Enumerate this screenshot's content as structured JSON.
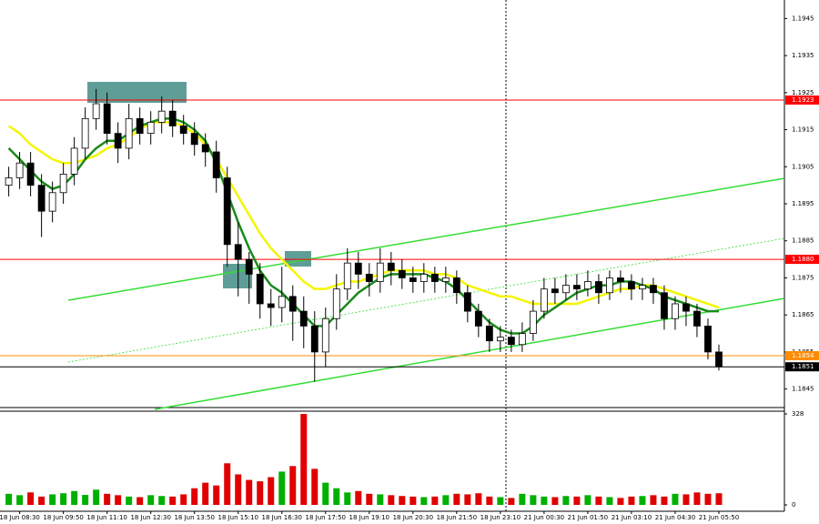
{
  "chart_data": [
    {
      "type": "candlestick",
      "x": [
        -1,
        0,
        1,
        2,
        3,
        4,
        5,
        6,
        7,
        8,
        9,
        10,
        11,
        12,
        13,
        14,
        15,
        16,
        17,
        18,
        19,
        20,
        21,
        22,
        23,
        24,
        25,
        26,
        27,
        28,
        29,
        30,
        31,
        32,
        33,
        34,
        35,
        36,
        37,
        38,
        39,
        40,
        41,
        42,
        43,
        44,
        45,
        46,
        47,
        48,
        49,
        50,
        51,
        52,
        53,
        54,
        55,
        56,
        57,
        58,
        59,
        60,
        61,
        62,
        63,
        64
      ],
      "open": [
        1.19,
        1.1902,
        1.1906,
        1.19,
        1.1893,
        1.1898,
        1.1903,
        1.191,
        1.1918,
        1.1922,
        1.1914,
        1.191,
        1.1918,
        1.1914,
        1.1917,
        1.192,
        1.1916,
        1.1914,
        1.1911,
        1.1909,
        1.1902,
        1.1884,
        1.188,
        1.1876,
        1.1868,
        1.1867,
        1.187,
        1.1866,
        1.1862,
        1.1855,
        1.1864,
        1.1872,
        1.1879,
        1.1876,
        1.1874,
        1.1879,
        1.1877,
        1.1875,
        1.1874,
        1.1876,
        1.1874,
        1.1875,
        1.1871,
        1.1866,
        1.1862,
        1.1858,
        1.1859,
        1.1857,
        1.186,
        1.1866,
        1.1872,
        1.1871,
        1.1873,
        1.1872,
        1.1874,
        1.1871,
        1.1875,
        1.1874,
        1.1872,
        1.1873,
        1.1871,
        1.1864,
        1.1868,
        1.1866,
        1.1862,
        1.1855
      ],
      "high": [
        1.1905,
        1.1909,
        1.1909,
        1.1903,
        1.1901,
        1.1906,
        1.1913,
        1.1921,
        1.1926,
        1.1925,
        1.1917,
        1.1922,
        1.1921,
        1.192,
        1.1924,
        1.1923,
        1.1919,
        1.1917,
        1.1914,
        1.1912,
        1.1905,
        1.189,
        1.1882,
        1.1879,
        1.1872,
        1.1878,
        1.1873,
        1.187,
        1.1866,
        1.1867,
        1.1876,
        1.1883,
        1.1882,
        1.1879,
        1.1883,
        1.1882,
        1.188,
        1.1878,
        1.1879,
        1.1878,
        1.1878,
        1.1877,
        1.1873,
        1.1868,
        1.1864,
        1.1862,
        1.1861,
        1.1863,
        1.1869,
        1.1875,
        1.1875,
        1.1876,
        1.1876,
        1.1877,
        1.1876,
        1.1877,
        1.1877,
        1.1876,
        1.1875,
        1.1875,
        1.1873,
        1.187,
        1.187,
        1.1868,
        1.1864,
        1.1857
      ],
      "low": [
        1.1897,
        1.1899,
        1.1897,
        1.1886,
        1.189,
        1.1895,
        1.19,
        1.1907,
        1.1915,
        1.1911,
        1.1906,
        1.1907,
        1.1911,
        1.1911,
        1.1914,
        1.1913,
        1.1911,
        1.1908,
        1.1905,
        1.1898,
        1.1878,
        1.187,
        1.1868,
        1.1864,
        1.1862,
        1.1863,
        1.1858,
        1.1856,
        1.1847,
        1.1851,
        1.1861,
        1.1869,
        1.1872,
        1.187,
        1.1871,
        1.1873,
        1.1872,
        1.1871,
        1.1871,
        1.1871,
        1.1871,
        1.1868,
        1.1863,
        1.1859,
        1.1855,
        1.1855,
        1.1855,
        1.1855,
        1.1858,
        1.1864,
        1.1868,
        1.1869,
        1.1869,
        1.187,
        1.1868,
        1.1869,
        1.1871,
        1.1869,
        1.1869,
        1.1868,
        1.1861,
        1.1861,
        1.1862,
        1.1859,
        1.1853,
        1.185
      ],
      "close": [
        1.1902,
        1.1906,
        1.19,
        1.1893,
        1.1898,
        1.1903,
        1.191,
        1.1918,
        1.1922,
        1.1914,
        1.191,
        1.1918,
        1.1914,
        1.1917,
        1.192,
        1.1916,
        1.1914,
        1.1911,
        1.1909,
        1.1902,
        1.1884,
        1.188,
        1.1876,
        1.1868,
        1.1867,
        1.187,
        1.1866,
        1.1862,
        1.1855,
        1.1864,
        1.1872,
        1.1879,
        1.1876,
        1.1874,
        1.1879,
        1.1877,
        1.1875,
        1.1874,
        1.1876,
        1.1874,
        1.1875,
        1.1871,
        1.1866,
        1.1862,
        1.1858,
        1.1859,
        1.1857,
        1.186,
        1.1866,
        1.1872,
        1.1871,
        1.1873,
        1.1872,
        1.1874,
        1.1871,
        1.1875,
        1.1874,
        1.1872,
        1.1873,
        1.1871,
        1.1864,
        1.1868,
        1.1866,
        1.1862,
        1.1855,
        1.1851
      ],
      "series": [
        {
          "color": "#f5f500",
          "values": [
            1.1916,
            1.1914,
            1.1911,
            1.1909,
            1.1907,
            1.1906,
            1.1906,
            1.1907,
            1.1908,
            1.191,
            1.1911,
            1.1913,
            1.1915,
            1.1917,
            1.1917,
            1.1917,
            1.1916,
            1.1914,
            1.1911,
            1.1907,
            1.1902,
            1.1897,
            1.1892,
            1.1887,
            1.1883,
            1.188,
            1.1877,
            1.1874,
            1.1872,
            1.1872,
            1.1873,
            1.1874,
            1.1874,
            1.1875,
            1.1876,
            1.1877,
            1.1877,
            1.1877,
            1.1877,
            1.1876,
            1.1876,
            1.1875,
            1.1873,
            1.1872,
            1.1871,
            1.187,
            1.187,
            1.1869,
            1.1868,
            1.1868,
            1.1868,
            1.1868,
            1.1868,
            1.1869,
            1.187,
            1.1871,
            1.1872,
            1.1872,
            1.1873,
            1.1873,
            1.1872,
            1.1871,
            1.187,
            1.1869,
            1.1868,
            1.1867
          ]
        },
        {
          "color": "#1a8a1a",
          "values": [
            1.191,
            1.1907,
            1.1904,
            1.1901,
            1.1899,
            1.19,
            1.1903,
            1.1907,
            1.191,
            1.1912,
            1.1912,
            1.1914,
            1.1916,
            1.1917,
            1.1918,
            1.1918,
            1.1917,
            1.1915,
            1.1912,
            1.1906,
            1.1898,
            1.189,
            1.1883,
            1.1877,
            1.1873,
            1.1871,
            1.1868,
            1.1865,
            1.1862,
            1.1862,
            1.1865,
            1.1868,
            1.1871,
            1.1873,
            1.1875,
            1.1876,
            1.1876,
            1.1876,
            1.1876,
            1.1875,
            1.1874,
            1.1872,
            1.1869,
            1.1866,
            1.1863,
            1.1861,
            1.186,
            1.186,
            1.1862,
            1.1865,
            1.1867,
            1.1869,
            1.1871,
            1.1872,
            1.1873,
            1.1873,
            1.1874,
            1.1874,
            1.1873,
            1.1872,
            1.187,
            1.1869,
            1.1868,
            1.1867,
            1.1866,
            1.1866
          ]
        }
      ],
      "xlim": [
        -1.8,
        70
      ],
      "ylim": [
        1.184,
        1.195
      ],
      "yticks": [
        1.1845,
        1.1855,
        1.1865,
        1.1875,
        1.1885,
        1.1895,
        1.1905,
        1.1915,
        1.1925,
        1.1935,
        1.1945
      ],
      "levels": [
        {
          "value": 1.1923,
          "color": "#ff0000"
        },
        {
          "value": 1.188,
          "label": "1.1880",
          "color": "#ff0000"
        },
        {
          "value": 1.1854,
          "color": "#ff8c00"
        },
        {
          "value": 1.1851,
          "color": "#000000"
        }
      ]
    },
    {
      "type": "bar",
      "x": [
        -1,
        0,
        1,
        2,
        3,
        4,
        5,
        6,
        7,
        8,
        9,
        10,
        11,
        12,
        13,
        14,
        15,
        16,
        17,
        18,
        19,
        20,
        21,
        22,
        23,
        24,
        25,
        26,
        27,
        28,
        29,
        30,
        31,
        32,
        33,
        34,
        35,
        36,
        37,
        38,
        39,
        40,
        41,
        42,
        43,
        44,
        45,
        46,
        47,
        48,
        49,
        50,
        51,
        52,
        53,
        54,
        55,
        56,
        57,
        58,
        59,
        60,
        61,
        62,
        63,
        64
      ],
      "values": [
        40,
        35,
        45,
        30,
        38,
        42,
        50,
        36,
        55,
        40,
        35,
        30,
        28,
        35,
        32,
        30,
        38,
        60,
        80,
        70,
        150,
        110,
        90,
        85,
        100,
        120,
        140,
        328,
        130,
        80,
        60,
        45,
        50,
        40,
        38,
        35,
        32,
        30,
        28,
        30,
        35,
        40,
        38,
        42,
        30,
        28,
        25,
        40,
        35,
        30,
        28,
        32,
        30,
        35,
        30,
        28,
        25,
        30,
        32,
        35,
        30,
        40,
        38,
        45,
        40,
        42
      ],
      "up_color": "#00b000",
      "down_color": "#e00000",
      "xlim": [
        -1.8,
        70
      ],
      "ylim": [
        0,
        328
      ],
      "yticks": [
        0,
        328
      ],
      "xticks": [
        {
          "value": 0,
          "label": "18 Jun 08:30"
        },
        {
          "value": 4,
          "label": "18 Jun 09:50"
        },
        {
          "value": 8,
          "label": "18 Jun 11:10"
        },
        {
          "value": 12,
          "label": "18 Jun 12:30"
        },
        {
          "value": 16,
          "label": "18 Jun 13:50"
        },
        {
          "value": 20,
          "label": "18 Jun 15:10"
        },
        {
          "value": 24,
          "label": "18 Jun 16:30"
        },
        {
          "value": 28,
          "label": "18 Jun 17:50"
        },
        {
          "value": 32,
          "label": "18 Jun 19:10"
        },
        {
          "value": 36,
          "label": "18 Jun 20:30"
        },
        {
          "value": 40,
          "label": "18 Jun 21:50"
        },
        {
          "value": 44,
          "label": "18 Jun 23:10"
        },
        {
          "value": 48,
          "label": "21 Jun 00:30"
        },
        {
          "value": 52,
          "label": "21 Jun 01:50"
        },
        {
          "value": 56,
          "label": "21 Jun 03:10"
        },
        {
          "value": 60,
          "label": "21 Jun 04:30"
        },
        {
          "value": 64,
          "label": "21 Jun 05:50"
        }
      ]
    }
  ]
}
